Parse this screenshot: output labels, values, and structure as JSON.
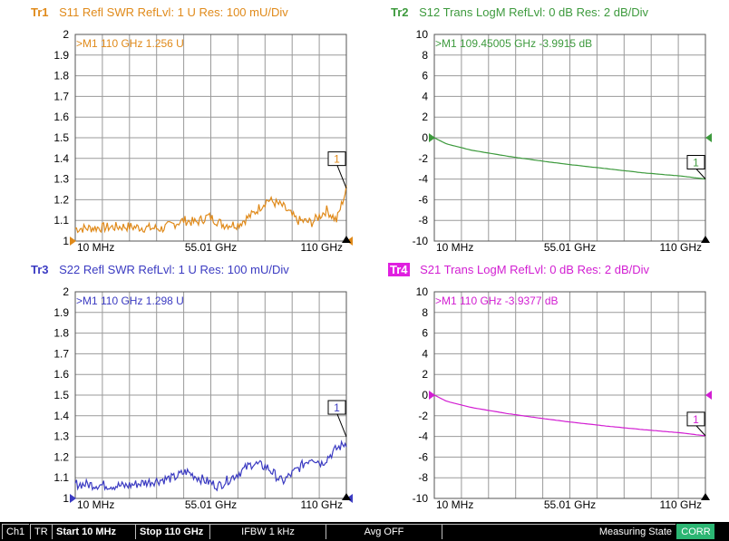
{
  "traces": [
    {
      "id": "Tr1",
      "rest": "S11 Refl SWR RefLvl: 1  U Res: 100 mU/Div",
      "color": "#e08a1a",
      "format": "swr",
      "y_ticks": [
        "2",
        "1.9",
        "1.8",
        "1.7",
        "1.6",
        "1.5",
        "1.4",
        "1.3",
        "1.2",
        "1.1",
        "1"
      ],
      "x_ticks": [
        "10 MHz",
        "55.01 GHz",
        "110 GHz"
      ],
      "marker_readout": ">M1   110  GHz  1.256  U",
      "marker_label": "1",
      "chart_data": {
        "type": "line",
        "x_range_ghz": [
          0.01,
          110
        ],
        "ylim": [
          1,
          2
        ],
        "x_ghz": [
          0.01,
          20,
          35,
          44,
          49,
          54,
          60,
          66,
          72,
          78,
          84,
          90,
          96,
          102,
          106,
          110
        ],
        "y": [
          1.06,
          1.07,
          1.06,
          1.1,
          1.09,
          1.12,
          1.08,
          1.08,
          1.13,
          1.2,
          1.17,
          1.1,
          1.09,
          1.15,
          1.1,
          1.25
        ],
        "noise": 0.03,
        "marker_value": 1.256
      }
    },
    {
      "id": "Tr2",
      "rest": "S12 Trans LogM RefLvl: 0  dB Res: 2  dB/Div",
      "color": "#3d9a3d",
      "format": "logm",
      "y_ticks": [
        "10",
        "8",
        "6",
        "4",
        "2",
        "0",
        "-2",
        "-4",
        "-6",
        "-8",
        "-10"
      ],
      "x_ticks": [
        "10 MHz",
        "55.01 GHz",
        "110 GHz"
      ],
      "marker_readout": ">M1   109.45005 GHz  -3.9915  dB",
      "marker_label": "1",
      "chart_data": {
        "type": "line",
        "x_range_ghz": [
          0.01,
          110
        ],
        "ylim": [
          -10,
          10
        ],
        "x_ghz": [
          0.01,
          5,
          15,
          30,
          45,
          55,
          70,
          85,
          100,
          110
        ],
        "y": [
          0,
          -0.6,
          -1.2,
          -1.8,
          -2.3,
          -2.6,
          -3.0,
          -3.4,
          -3.7,
          -4.0
        ],
        "noise": 0.03,
        "marker_value": -3.9915
      }
    },
    {
      "id": "Tr3",
      "rest": "S22 Refl SWR RefLvl: 1  U Res: 100 mU/Div",
      "color": "#3b3bc2",
      "format": "swr",
      "y_ticks": [
        "2",
        "1.9",
        "1.8",
        "1.7",
        "1.6",
        "1.5",
        "1.4",
        "1.3",
        "1.2",
        "1.1",
        "1"
      ],
      "x_ticks": [
        "10 MHz",
        "55.01 GHz",
        "110 GHz"
      ],
      "marker_readout": ">M1   110  GHz  1.298  U",
      "marker_label": "1",
      "chart_data": {
        "type": "line",
        "x_range_ghz": [
          0.01,
          110
        ],
        "ylim": [
          1,
          2
        ],
        "x_ghz": [
          0.01,
          20,
          30,
          40,
          45,
          50,
          58,
          66,
          72,
          78,
          84,
          90,
          96,
          100,
          106,
          110
        ],
        "y": [
          1.07,
          1.06,
          1.08,
          1.1,
          1.13,
          1.1,
          1.06,
          1.12,
          1.17,
          1.15,
          1.08,
          1.14,
          1.2,
          1.17,
          1.24,
          1.27
        ],
        "noise": 0.03,
        "marker_value": 1.298
      }
    },
    {
      "id": "Tr4",
      "rest": "S21 Trans LogM RefLvl: 0  dB Res: 2  dB/Div",
      "color": "#d21ed2",
      "format": "logm",
      "y_ticks": [
        "10",
        "8",
        "6",
        "4",
        "2",
        "0",
        "-2",
        "-4",
        "-6",
        "-8",
        "-10"
      ],
      "x_ticks": [
        "10 MHz",
        "55.01 GHz",
        "110 GHz"
      ],
      "marker_readout": ">M1   110  GHz  -3.9377  dB",
      "marker_label": "1",
      "chart_data": {
        "type": "line",
        "x_range_ghz": [
          0.01,
          110
        ],
        "ylim": [
          -10,
          10
        ],
        "x_ghz": [
          0.01,
          5,
          15,
          30,
          45,
          55,
          70,
          85,
          100,
          110
        ],
        "y": [
          0,
          -0.6,
          -1.2,
          -1.8,
          -2.3,
          -2.6,
          -3.0,
          -3.35,
          -3.65,
          -3.94
        ],
        "noise": 0.03,
        "marker_value": -3.9377
      }
    }
  ],
  "status_bar": {
    "channel": "Ch1",
    "tr": "TR",
    "start": "Start 10 MHz",
    "stop": "Stop 110 GHz",
    "ifbw": "IFBW 1 kHz",
    "avg": "Avg OFF",
    "state": "Measuring State",
    "corr": "CORR"
  }
}
